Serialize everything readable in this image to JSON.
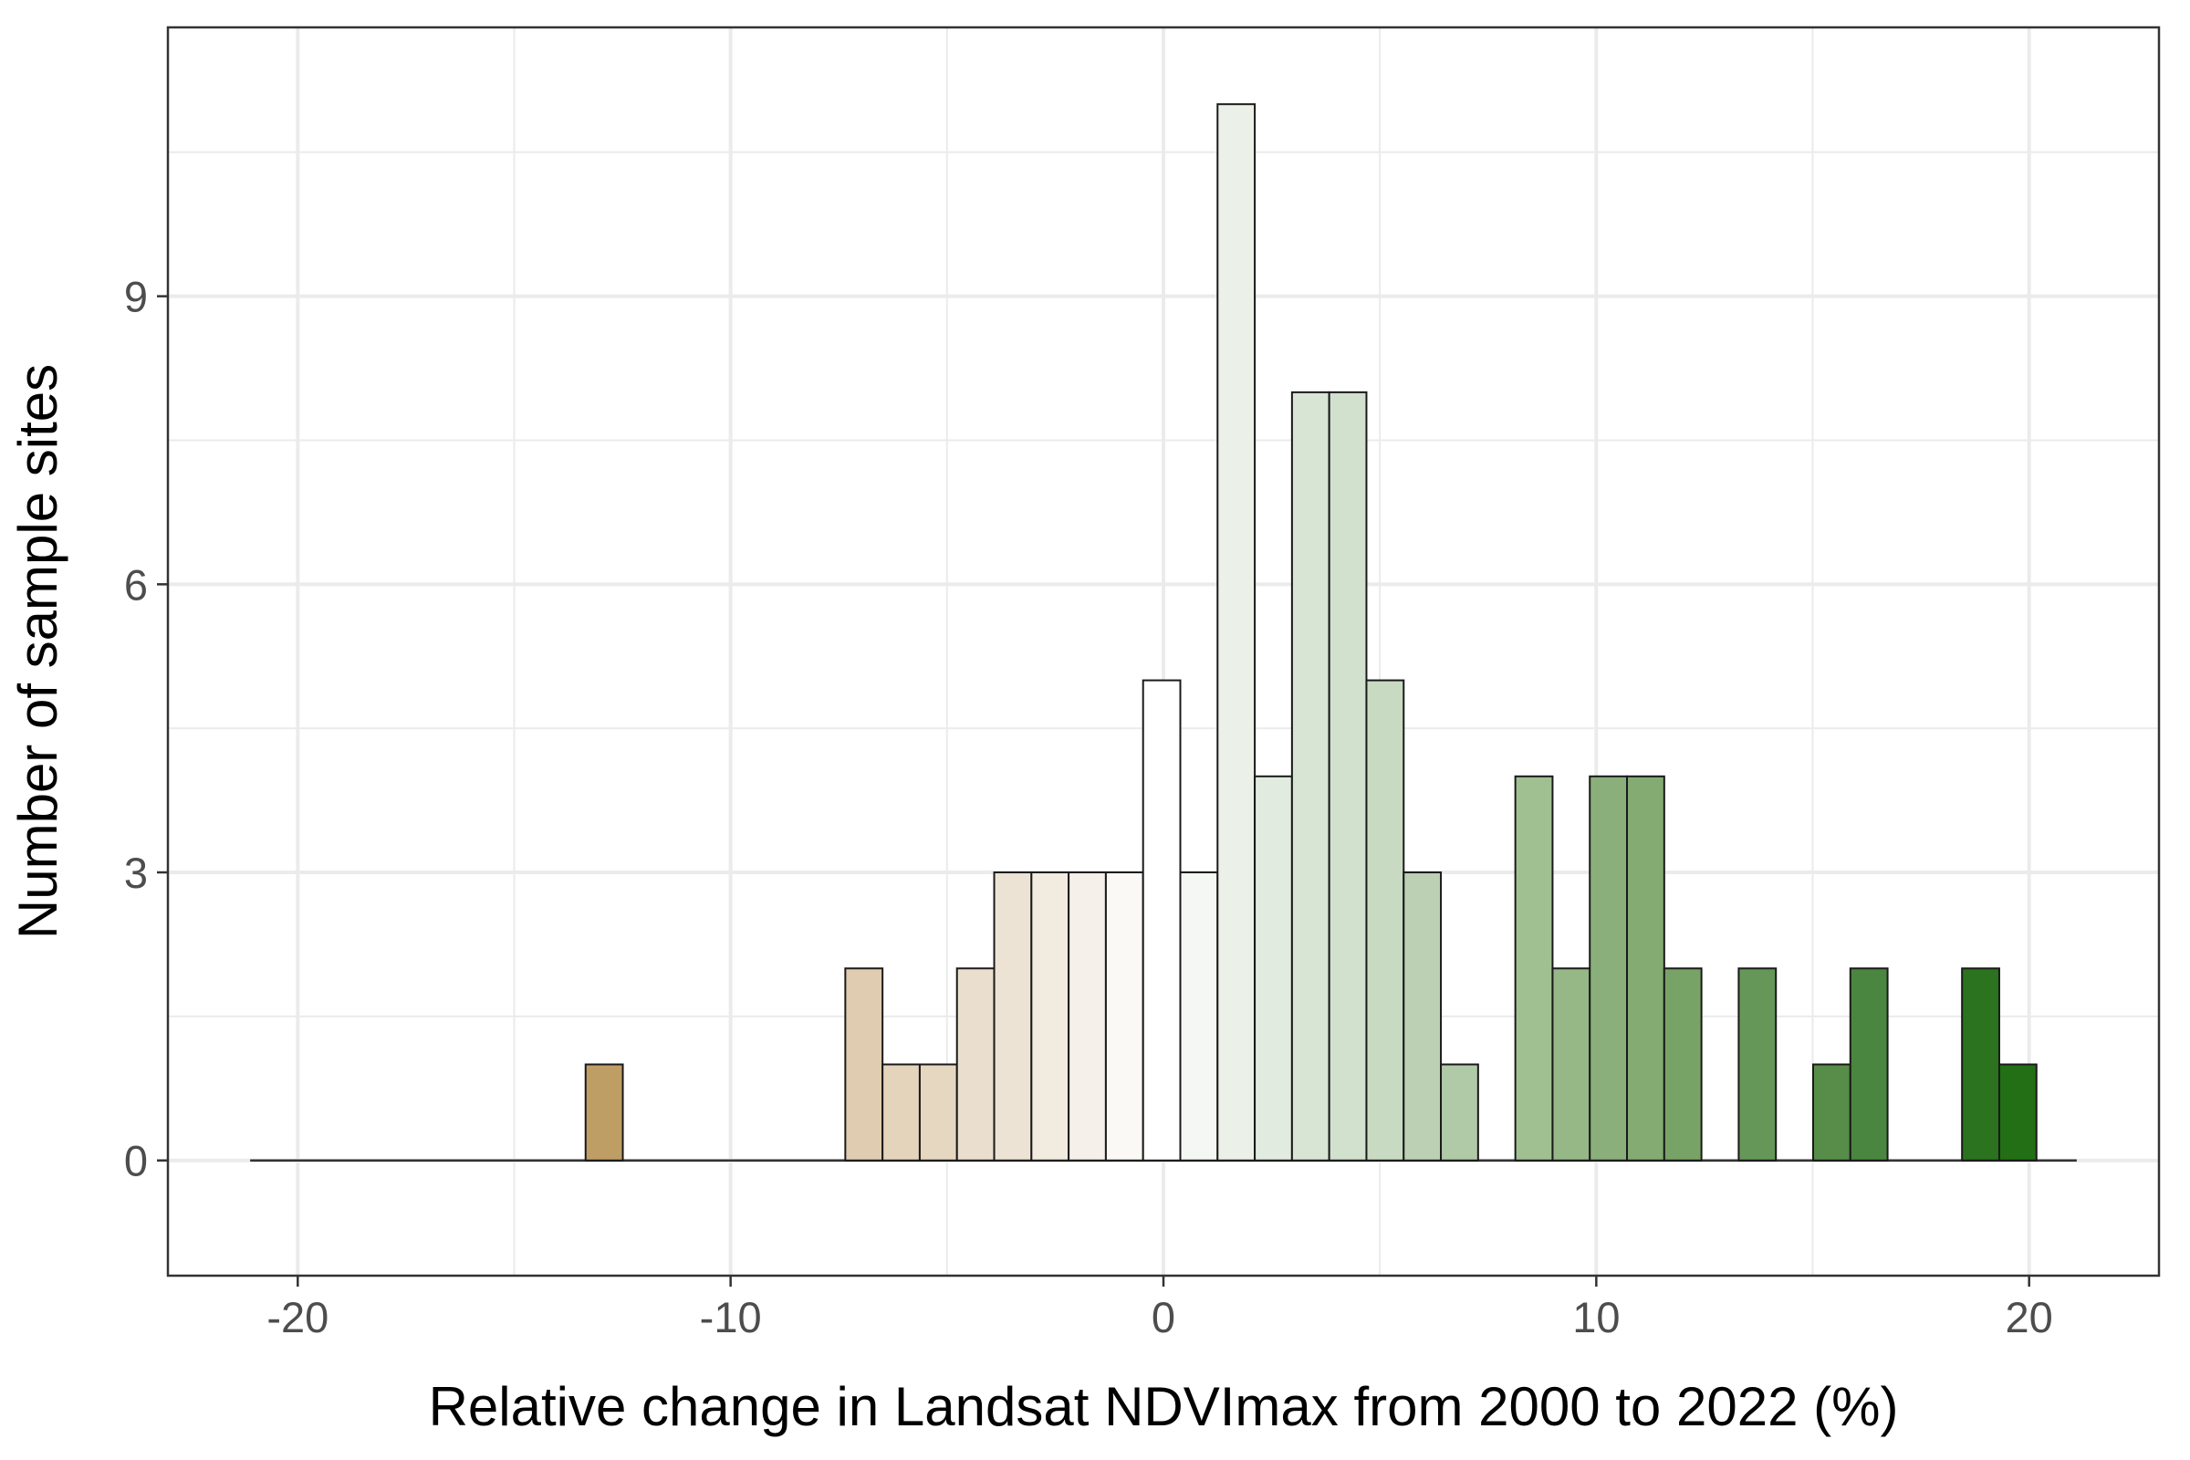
{
  "chart_data": {
    "type": "bar",
    "title": "",
    "xlabel": "Relative change in Landsat NDVImax from 2000 to 2022 (%)",
    "ylabel": "Number of sample sites",
    "xlim": [
      -23,
      23
    ],
    "ylim": [
      -1.2,
      11.8
    ],
    "grid": true,
    "x_ticks": [
      -20,
      -10,
      0,
      10,
      20
    ],
    "x_tick_labels": [
      "-20",
      "-10",
      "0",
      "10",
      "20"
    ],
    "y_ticks": [
      0,
      3,
      6,
      9
    ],
    "y_tick_labels": [
      "0",
      "3",
      "6",
      "9"
    ],
    "bin_width": 0.86,
    "baseline_range": [
      -21.1,
      21.1
    ],
    "bins": [
      {
        "x0": -13.35,
        "count": 1,
        "color": "#bf9e66"
      },
      {
        "x0": -7.35,
        "count": 2,
        "color": "#e0ccb0"
      },
      {
        "x0": -6.49,
        "count": 1,
        "color": "#e4d4bc"
      },
      {
        "x0": -5.63,
        "count": 1,
        "color": "#e6d7c1"
      },
      {
        "x0": -4.77,
        "count": 2,
        "color": "#eadfce"
      },
      {
        "x0": -3.91,
        "count": 3,
        "color": "#ede3d5"
      },
      {
        "x0": -3.05,
        "count": 3,
        "color": "#f2ebe0"
      },
      {
        "x0": -2.19,
        "count": 3,
        "color": "#f5f0ea"
      },
      {
        "x0": -1.33,
        "count": 3,
        "color": "#fbf9f6"
      },
      {
        "x0": -0.47,
        "count": 5,
        "color": "#ffffff"
      },
      {
        "x0": 0.39,
        "count": 3,
        "color": "#f5f7f4"
      },
      {
        "x0": 1.25,
        "count": 11,
        "color": "#ebf0e9"
      },
      {
        "x0": 2.11,
        "count": 4,
        "color": "#e2ebe0"
      },
      {
        "x0": 2.97,
        "count": 8,
        "color": "#d8e4d4"
      },
      {
        "x0": 3.83,
        "count": 8,
        "color": "#d2e0ce"
      },
      {
        "x0": 4.69,
        "count": 5,
        "color": "#c9dac3"
      },
      {
        "x0": 5.55,
        "count": 3,
        "color": "#bcd1b4"
      },
      {
        "x0": 6.41,
        "count": 1,
        "color": "#b0c9a7"
      },
      {
        "x0": 8.13,
        "count": 4,
        "color": "#a0c092"
      },
      {
        "x0": 8.99,
        "count": 2,
        "color": "#95b886"
      },
      {
        "x0": 9.85,
        "count": 4,
        "color": "#8aaf7b"
      },
      {
        "x0": 10.71,
        "count": 4,
        "color": "#83ab72"
      },
      {
        "x0": 11.57,
        "count": 2,
        "color": "#78a366"
      },
      {
        "x0": 13.29,
        "count": 2,
        "color": "#659858"
      },
      {
        "x0": 15.01,
        "count": 1,
        "color": "#578d49"
      },
      {
        "x0": 15.87,
        "count": 2,
        "color": "#4b8640"
      },
      {
        "x0": 18.45,
        "count": 2,
        "color": "#2b731e"
      },
      {
        "x0": 19.31,
        "count": 1,
        "color": "#226f15"
      }
    ],
    "colors": {
      "gridline": "#ebebeb",
      "panel_border": "#333333",
      "bar_outline": "#1a1a1a",
      "tick_label": "#4d4d4d"
    }
  }
}
